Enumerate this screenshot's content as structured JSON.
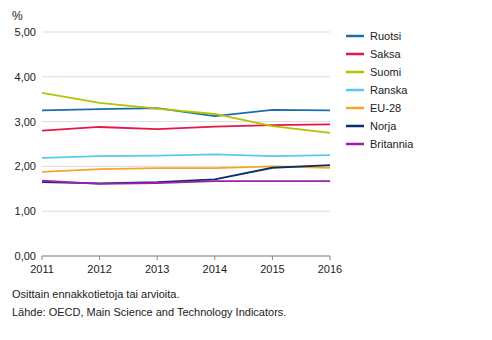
{
  "chart_data": {
    "type": "line",
    "ylabel": "%",
    "annotations": [
      "Osittain ennakkotietoja tai arvioita.",
      "Lähde: OECD, Main Science and Technology Indicators."
    ],
    "x": [
      2011,
      2012,
      2013,
      2014,
      2015,
      2016
    ],
    "xlim": [
      2011,
      2016
    ],
    "xticks": [
      2011,
      2012,
      2013,
      2014,
      2015,
      2016
    ],
    "ylim": [
      0.0,
      5.0
    ],
    "yticks": [
      {
        "value": 0.0,
        "label": "0,00"
      },
      {
        "value": 1.0,
        "label": "1,00"
      },
      {
        "value": 2.0,
        "label": "2,00"
      },
      {
        "value": 3.0,
        "label": "3,00"
      },
      {
        "value": 4.0,
        "label": "4,00"
      },
      {
        "value": 5.0,
        "label": "5,00"
      }
    ],
    "grid": "y",
    "legend": "right",
    "series": [
      {
        "name": "Ruotsi",
        "color": "#1a6fa8",
        "values": [
          3.25,
          3.28,
          3.3,
          3.12,
          3.26,
          3.25
        ]
      },
      {
        "name": "Saksa",
        "color": "#e8174a",
        "values": [
          2.8,
          2.88,
          2.83,
          2.89,
          2.92,
          2.94
        ]
      },
      {
        "name": "Suomi",
        "color": "#b5c200",
        "values": [
          3.64,
          3.42,
          3.29,
          3.17,
          2.9,
          2.75
        ]
      },
      {
        "name": "Ranska",
        "color": "#5bc8f0",
        "values": [
          2.19,
          2.23,
          2.24,
          2.27,
          2.23,
          2.25
        ]
      },
      {
        "name": "EU-28",
        "color": "#f5a623",
        "values": [
          1.88,
          1.94,
          1.96,
          1.96,
          2.0,
          1.97
        ]
      },
      {
        "name": "Norja",
        "color": "#0a2d6e",
        "values": [
          1.65,
          1.62,
          1.65,
          1.71,
          1.97,
          2.03
        ]
      },
      {
        "name": "Britannia",
        "color": "#9b1fa8",
        "values": [
          1.68,
          1.61,
          1.63,
          1.67,
          1.67,
          1.67
        ]
      }
    ]
  }
}
